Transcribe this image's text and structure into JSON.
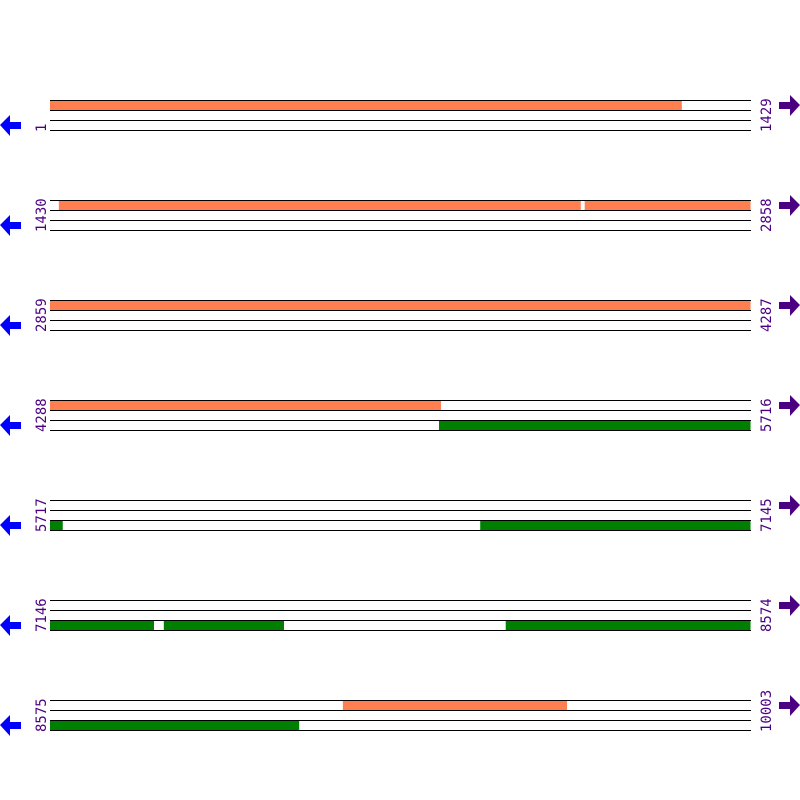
{
  "map": {
    "bases_per_row": 1429,
    "colors": {
      "forward_feature": "#ff7f50",
      "reverse_feature": "#008000",
      "strand_line": "#000000",
      "reverse_arrow": "#0000ff",
      "forward_arrow": "#4b0082",
      "label": "#4b0082"
    },
    "icons": {
      "left": "arrow-left-icon",
      "right": "arrow-right-icon"
    },
    "rows": [
      {
        "start": "1",
        "end": "1429",
        "forward": [
          [
            1,
            1289
          ]
        ],
        "reverse": []
      },
      {
        "start": "1430",
        "end": "2858",
        "forward": [
          [
            1448,
            2512
          ],
          [
            2520,
            2858
          ]
        ],
        "reverse": []
      },
      {
        "start": "2859",
        "end": "4287",
        "forward": [
          [
            2859,
            4287
          ]
        ],
        "reverse": []
      },
      {
        "start": "4288",
        "end": "5716",
        "forward": [
          [
            4288,
            5085
          ]
        ],
        "reverse": [
          [
            5081,
            5716
          ]
        ]
      },
      {
        "start": "5717",
        "end": "7145",
        "forward": [],
        "reverse": [
          [
            5717,
            5743
          ],
          [
            6594,
            7145
          ]
        ]
      },
      {
        "start": "7146",
        "end": "8574",
        "forward": [],
        "reverse": [
          [
            7146,
            7358
          ],
          [
            7378,
            7623
          ],
          [
            8075,
            8574
          ]
        ]
      },
      {
        "start": "8575",
        "end": "10003",
        "forward": [
          [
            9172,
            9629
          ]
        ],
        "reverse": [
          [
            8575,
            9083
          ]
        ]
      }
    ]
  }
}
